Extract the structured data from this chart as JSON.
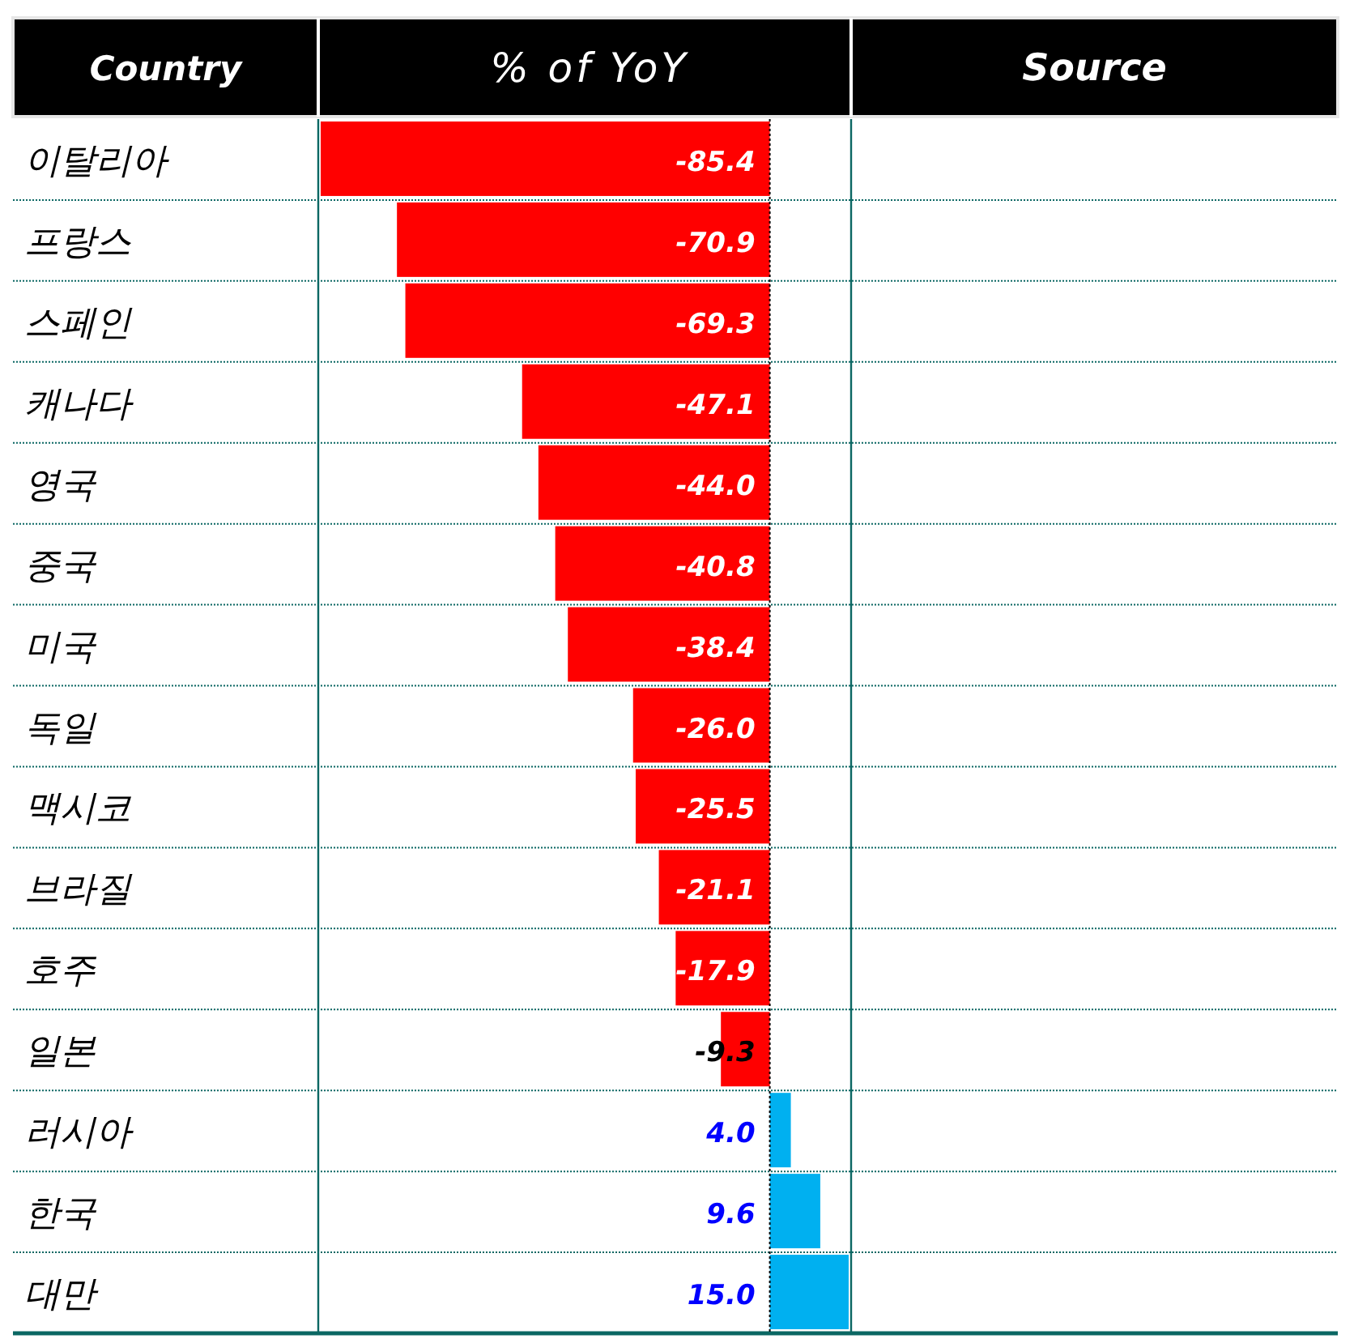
{
  "chart_data": {
    "type": "bar",
    "orientation": "horizontal",
    "ylabel": "Country",
    "xlabel": "% of YoY",
    "annotations": [
      "Source"
    ],
    "categories": [
      "이탈리아",
      "프랑스",
      "스페인",
      "캐나다",
      "영국",
      "중국",
      "미국",
      "독일",
      "맥시코",
      "브라질",
      "호주",
      "일본",
      "러시아",
      "한국",
      "대만"
    ],
    "values": [
      -85.4,
      -70.9,
      -69.3,
      -47.1,
      -44.0,
      -40.8,
      -38.4,
      -26.0,
      -25.5,
      -21.1,
      -17.9,
      -9.3,
      4.0,
      9.6,
      15.0
    ],
    "colors": [
      "#ff0000",
      "#ff0000",
      "#ff0000",
      "#ff0000",
      "#ff0000",
      "#ff0000",
      "#ff0000",
      "#ff0000",
      "#ff0000",
      "#ff0000",
      "#ff0000",
      "#ff0000",
      "#00b0f0",
      "#00b0f0",
      "#00b0f0"
    ],
    "value_labels": [
      "-85.4",
      "-70.9",
      "-69.3",
      "-47.1",
      "-44.0",
      "-40.8",
      "-38.4",
      "-26.0",
      "-25.5",
      "-21.1",
      "-17.9",
      "-9.3",
      "4.0",
      "9.6",
      "15.0"
    ],
    "xlim": [
      -85.4,
      15
    ],
    "ref_lines": [
      {
        "axis": "x",
        "value": 0,
        "color": "#000000",
        "line_style": "dotted"
      }
    ]
  }
}
